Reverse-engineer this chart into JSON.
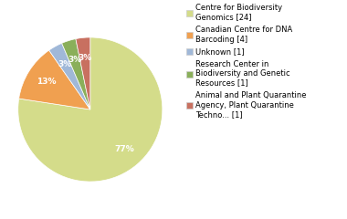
{
  "labels": [
    "Centre for Biodiversity\nGenomics [24]",
    "Canadian Centre for DNA\nBarcoding [4]",
    "Unknown [1]",
    "Research Center in\nBiodiversity and Genetic\nResources [1]",
    "Animal and Plant Quarantine\nAgency, Plant Quarantine\nTechno... [1]"
  ],
  "values": [
    24,
    4,
    1,
    1,
    1
  ],
  "colors": [
    "#d4dc8a",
    "#f0a050",
    "#a0b8d8",
    "#8aaf5a",
    "#c87060"
  ],
  "background_color": "#ffffff",
  "text_color": "#ffffff",
  "fontsize": 6.5,
  "legend_fontsize": 6.0
}
